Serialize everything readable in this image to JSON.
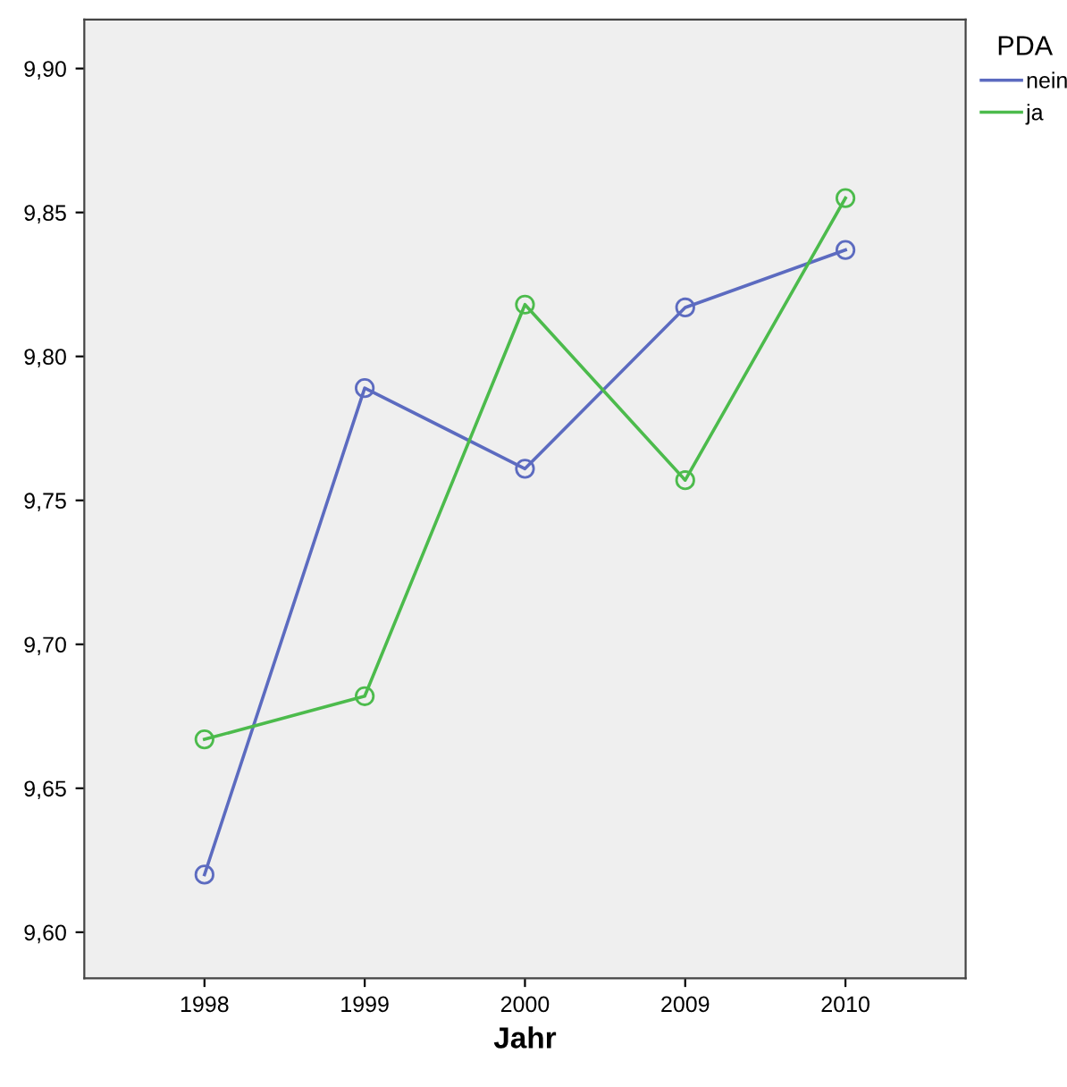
{
  "chart_data": {
    "type": "line",
    "xlabel": "Jahr",
    "legend_title": "PDA",
    "legend": "top right",
    "marker": "circle",
    "grid": false,
    "categories": [
      "1998",
      "1999",
      "2000",
      "2009",
      "2010"
    ],
    "ylim": [
      9.584,
      9.917
    ],
    "yticks": [
      {
        "value": 9.6,
        "label": "9,60"
      },
      {
        "value": 9.65,
        "label": "9,65"
      },
      {
        "value": 9.7,
        "label": "9,70"
      },
      {
        "value": 9.75,
        "label": "9,75"
      },
      {
        "value": 9.8,
        "label": "9,80"
      },
      {
        "value": 9.85,
        "label": "9,85"
      },
      {
        "value": 9.9,
        "label": "9,90"
      }
    ],
    "series": [
      {
        "name": "nein",
        "color": "#5c6bc0",
        "values": [
          9.62,
          9.789,
          9.761,
          9.817,
          9.837
        ]
      },
      {
        "name": "ja",
        "color": "#4cbb4c",
        "values": [
          9.667,
          9.682,
          9.818,
          9.757,
          9.855
        ]
      }
    ]
  }
}
